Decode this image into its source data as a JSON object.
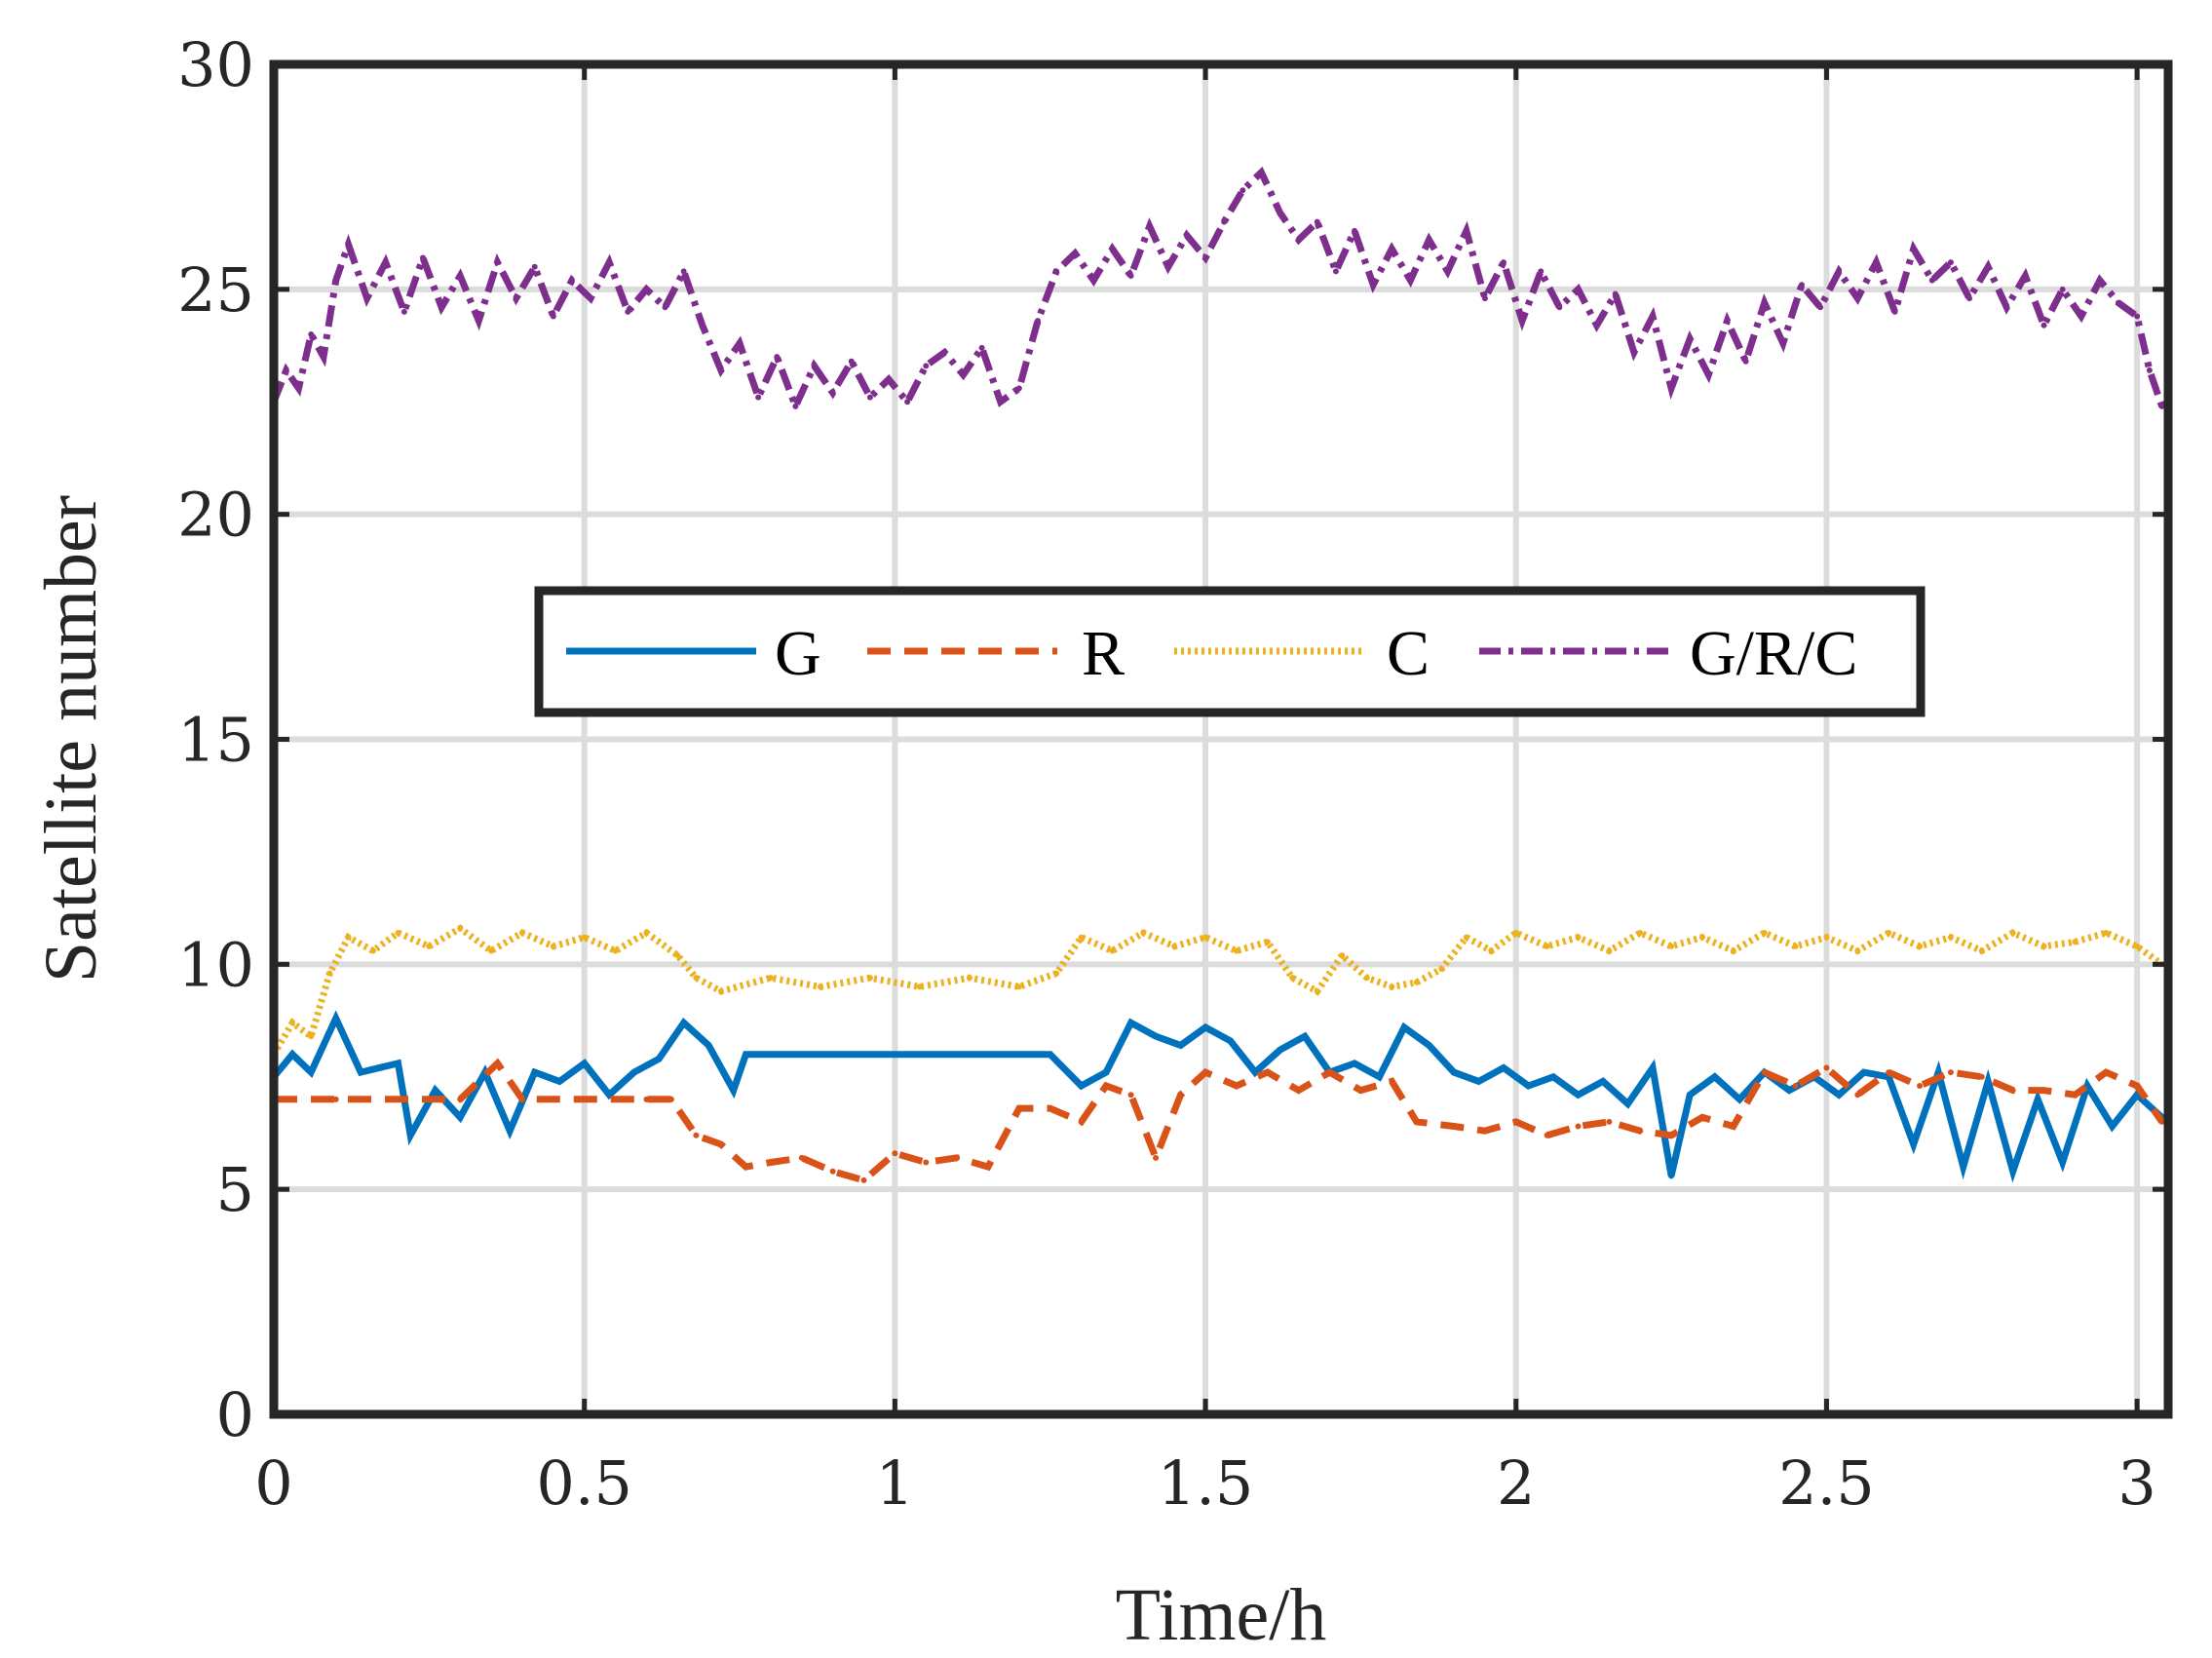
{
  "chart_data": {
    "type": "line",
    "title": "",
    "xlabel": "Time/h",
    "ylabel": "Satellite number",
    "xlim": [
      0,
      3.05
    ],
    "ylim": [
      0,
      30
    ],
    "xticks": [
      0,
      0.5,
      1,
      1.5,
      2,
      2.5,
      3
    ],
    "xtick_labels": [
      "0",
      "0.5",
      "1",
      "1.5",
      "2",
      "2.5",
      "3"
    ],
    "yticks": [
      0,
      5,
      10,
      15,
      20,
      25,
      30
    ],
    "ytick_labels": [
      "0",
      "5",
      "10",
      "15",
      "20",
      "25",
      "30"
    ],
    "grid": true,
    "legend_position": "center",
    "series": [
      {
        "name": "G",
        "color": "#0072BD",
        "dash": "solid",
        "points": [
          [
            0,
            7.5
          ],
          [
            0.03,
            8
          ],
          [
            0.06,
            7.6
          ],
          [
            0.1,
            8.8
          ],
          [
            0.14,
            7.6
          ],
          [
            0.2,
            7.8
          ],
          [
            0.22,
            6.2
          ],
          [
            0.26,
            7.2
          ],
          [
            0.3,
            6.6
          ],
          [
            0.34,
            7.6
          ],
          [
            0.38,
            6.3
          ],
          [
            0.42,
            7.6
          ],
          [
            0.46,
            7.4
          ],
          [
            0.5,
            7.8
          ],
          [
            0.54,
            7.1
          ],
          [
            0.58,
            7.6
          ],
          [
            0.62,
            7.9
          ],
          [
            0.66,
            8.7
          ],
          [
            0.7,
            8.2
          ],
          [
            0.74,
            7.2
          ],
          [
            0.76,
            8
          ],
          [
            0.85,
            8
          ],
          [
            0.95,
            8
          ],
          [
            1.05,
            8
          ],
          [
            1.15,
            8
          ],
          [
            1.25,
            8
          ],
          [
            1.3,
            7.3
          ],
          [
            1.34,
            7.6
          ],
          [
            1.38,
            8.7
          ],
          [
            1.42,
            8.4
          ],
          [
            1.46,
            8.2
          ],
          [
            1.5,
            8.6
          ],
          [
            1.54,
            8.3
          ],
          [
            1.58,
            7.6
          ],
          [
            1.62,
            8.1
          ],
          [
            1.66,
            8.4
          ],
          [
            1.7,
            7.6
          ],
          [
            1.74,
            7.8
          ],
          [
            1.78,
            7.5
          ],
          [
            1.82,
            8.6
          ],
          [
            1.86,
            8.2
          ],
          [
            1.9,
            7.6
          ],
          [
            1.94,
            7.4
          ],
          [
            1.98,
            7.7
          ],
          [
            2.02,
            7.3
          ],
          [
            2.06,
            7.5
          ],
          [
            2.1,
            7.1
          ],
          [
            2.14,
            7.4
          ],
          [
            2.18,
            6.9
          ],
          [
            2.22,
            7.7
          ],
          [
            2.25,
            5.3
          ],
          [
            2.28,
            7.1
          ],
          [
            2.32,
            7.5
          ],
          [
            2.36,
            7.0
          ],
          [
            2.4,
            7.6
          ],
          [
            2.44,
            7.2
          ],
          [
            2.48,
            7.5
          ],
          [
            2.52,
            7.1
          ],
          [
            2.56,
            7.6
          ],
          [
            2.6,
            7.5
          ],
          [
            2.64,
            6.0
          ],
          [
            2.68,
            7.6
          ],
          [
            2.72,
            5.5
          ],
          [
            2.76,
            7.4
          ],
          [
            2.8,
            5.4
          ],
          [
            2.84,
            7.0
          ],
          [
            2.88,
            5.6
          ],
          [
            2.92,
            7.3
          ],
          [
            2.96,
            6.4
          ],
          [
            3.0,
            7.1
          ],
          [
            3.04,
            6.6
          ]
        ]
      },
      {
        "name": "R",
        "color": "#D95319",
        "dash": "dashed",
        "points": [
          [
            0,
            7
          ],
          [
            0.1,
            7
          ],
          [
            0.2,
            7
          ],
          [
            0.3,
            7
          ],
          [
            0.36,
            7.8
          ],
          [
            0.4,
            7
          ],
          [
            0.5,
            7
          ],
          [
            0.6,
            7
          ],
          [
            0.64,
            7
          ],
          [
            0.68,
            6.2
          ],
          [
            0.72,
            6
          ],
          [
            0.76,
            5.5
          ],
          [
            0.8,
            5.6
          ],
          [
            0.85,
            5.7
          ],
          [
            0.9,
            5.4
          ],
          [
            0.95,
            5.2
          ],
          [
            1.0,
            5.8
          ],
          [
            1.05,
            5.6
          ],
          [
            1.1,
            5.7
          ],
          [
            1.15,
            5.5
          ],
          [
            1.2,
            6.8
          ],
          [
            1.25,
            6.8
          ],
          [
            1.3,
            6.5
          ],
          [
            1.34,
            7.3
          ],
          [
            1.38,
            7.1
          ],
          [
            1.42,
            5.7
          ],
          [
            1.46,
            7.1
          ],
          [
            1.5,
            7.6
          ],
          [
            1.55,
            7.3
          ],
          [
            1.6,
            7.6
          ],
          [
            1.65,
            7.2
          ],
          [
            1.7,
            7.6
          ],
          [
            1.75,
            7.2
          ],
          [
            1.8,
            7.4
          ],
          [
            1.84,
            6.5
          ],
          [
            1.9,
            6.4
          ],
          [
            1.95,
            6.3
          ],
          [
            2.0,
            6.5
          ],
          [
            2.05,
            6.2
          ],
          [
            2.1,
            6.4
          ],
          [
            2.15,
            6.5
          ],
          [
            2.2,
            6.3
          ],
          [
            2.25,
            6.2
          ],
          [
            2.3,
            6.6
          ],
          [
            2.35,
            6.4
          ],
          [
            2.4,
            7.6
          ],
          [
            2.45,
            7.3
          ],
          [
            2.5,
            7.7
          ],
          [
            2.55,
            7.1
          ],
          [
            2.6,
            7.6
          ],
          [
            2.65,
            7.3
          ],
          [
            2.7,
            7.6
          ],
          [
            2.75,
            7.5
          ],
          [
            2.8,
            7.2
          ],
          [
            2.85,
            7.2
          ],
          [
            2.9,
            7.1
          ],
          [
            2.95,
            7.6
          ],
          [
            3.0,
            7.3
          ],
          [
            3.04,
            6.5
          ]
        ]
      },
      {
        "name": "C",
        "color": "#EDB120",
        "dash": "dotted",
        "points": [
          [
            0,
            8
          ],
          [
            0.03,
            8.7
          ],
          [
            0.06,
            8.4
          ],
          [
            0.09,
            9.8
          ],
          [
            0.12,
            10.6
          ],
          [
            0.16,
            10.3
          ],
          [
            0.2,
            10.7
          ],
          [
            0.25,
            10.4
          ],
          [
            0.3,
            10.8
          ],
          [
            0.35,
            10.3
          ],
          [
            0.4,
            10.7
          ],
          [
            0.45,
            10.4
          ],
          [
            0.5,
            10.6
          ],
          [
            0.55,
            10.3
          ],
          [
            0.6,
            10.7
          ],
          [
            0.65,
            10.2
          ],
          [
            0.68,
            9.7
          ],
          [
            0.72,
            9.4
          ],
          [
            0.8,
            9.7
          ],
          [
            0.88,
            9.5
          ],
          [
            0.96,
            9.7
          ],
          [
            1.04,
            9.5
          ],
          [
            1.12,
            9.7
          ],
          [
            1.2,
            9.5
          ],
          [
            1.26,
            9.8
          ],
          [
            1.3,
            10.6
          ],
          [
            1.35,
            10.3
          ],
          [
            1.4,
            10.7
          ],
          [
            1.45,
            10.4
          ],
          [
            1.5,
            10.6
          ],
          [
            1.55,
            10.3
          ],
          [
            1.6,
            10.5
          ],
          [
            1.64,
            9.7
          ],
          [
            1.68,
            9.4
          ],
          [
            1.72,
            10.2
          ],
          [
            1.76,
            9.7
          ],
          [
            1.8,
            9.5
          ],
          [
            1.84,
            9.6
          ],
          [
            1.88,
            9.9
          ],
          [
            1.92,
            10.6
          ],
          [
            1.96,
            10.3
          ],
          [
            2.0,
            10.7
          ],
          [
            2.05,
            10.4
          ],
          [
            2.1,
            10.6
          ],
          [
            2.15,
            10.3
          ],
          [
            2.2,
            10.7
          ],
          [
            2.25,
            10.4
          ],
          [
            2.3,
            10.6
          ],
          [
            2.35,
            10.3
          ],
          [
            2.4,
            10.7
          ],
          [
            2.45,
            10.4
          ],
          [
            2.5,
            10.6
          ],
          [
            2.55,
            10.3
          ],
          [
            2.6,
            10.7
          ],
          [
            2.65,
            10.4
          ],
          [
            2.7,
            10.6
          ],
          [
            2.75,
            10.3
          ],
          [
            2.8,
            10.7
          ],
          [
            2.85,
            10.4
          ],
          [
            2.9,
            10.5
          ],
          [
            2.95,
            10.7
          ],
          [
            3.0,
            10.4
          ],
          [
            3.04,
            10
          ]
        ]
      },
      {
        "name": "G/R/C",
        "color": "#7E2F8E",
        "dash": "dashdot",
        "points": [
          [
            0,
            22.5
          ],
          [
            0.02,
            23.2
          ],
          [
            0.04,
            22.8
          ],
          [
            0.06,
            24
          ],
          [
            0.08,
            23.5
          ],
          [
            0.1,
            25.2
          ],
          [
            0.12,
            26
          ],
          [
            0.15,
            24.8
          ],
          [
            0.18,
            25.6
          ],
          [
            0.21,
            24.5
          ],
          [
            0.24,
            25.7
          ],
          [
            0.27,
            24.6
          ],
          [
            0.3,
            25.3
          ],
          [
            0.33,
            24.3
          ],
          [
            0.36,
            25.6
          ],
          [
            0.39,
            24.8
          ],
          [
            0.42,
            25.5
          ],
          [
            0.45,
            24.4
          ],
          [
            0.48,
            25.2
          ],
          [
            0.51,
            24.8
          ],
          [
            0.54,
            25.6
          ],
          [
            0.57,
            24.5
          ],
          [
            0.6,
            25
          ],
          [
            0.63,
            24.6
          ],
          [
            0.66,
            25.4
          ],
          [
            0.69,
            24.2
          ],
          [
            0.72,
            23.2
          ],
          [
            0.75,
            23.8
          ],
          [
            0.78,
            22.6
          ],
          [
            0.81,
            23.5
          ],
          [
            0.84,
            22.4
          ],
          [
            0.87,
            23.3
          ],
          [
            0.9,
            22.7
          ],
          [
            0.93,
            23.4
          ],
          [
            0.96,
            22.6
          ],
          [
            0.99,
            23
          ],
          [
            1.02,
            22.5
          ],
          [
            1.05,
            23.3
          ],
          [
            1.08,
            23.6
          ],
          [
            1.11,
            23.1
          ],
          [
            1.14,
            23.7
          ],
          [
            1.17,
            22.5
          ],
          [
            1.2,
            22.8
          ],
          [
            1.23,
            24.3
          ],
          [
            1.26,
            25.4
          ],
          [
            1.29,
            25.8
          ],
          [
            1.32,
            25.2
          ],
          [
            1.35,
            25.9
          ],
          [
            1.38,
            25.3
          ],
          [
            1.41,
            26.4
          ],
          [
            1.44,
            25.5
          ],
          [
            1.47,
            26.2
          ],
          [
            1.5,
            25.7
          ],
          [
            1.53,
            26.5
          ],
          [
            1.56,
            27.2
          ],
          [
            1.59,
            27.6
          ],
          [
            1.62,
            26.7
          ],
          [
            1.65,
            26.1
          ],
          [
            1.68,
            26.5
          ],
          [
            1.71,
            25.4
          ],
          [
            1.74,
            26.3
          ],
          [
            1.77,
            25.1
          ],
          [
            1.8,
            25.9
          ],
          [
            1.83,
            25.2
          ],
          [
            1.86,
            26.1
          ],
          [
            1.89,
            25.4
          ],
          [
            1.92,
            26.3
          ],
          [
            1.95,
            24.8
          ],
          [
            1.98,
            25.6
          ],
          [
            2.01,
            24.3
          ],
          [
            2.04,
            25.4
          ],
          [
            2.07,
            24.6
          ],
          [
            2.1,
            25
          ],
          [
            2.13,
            24.2
          ],
          [
            2.16,
            24.9
          ],
          [
            2.19,
            23.6
          ],
          [
            2.22,
            24.4
          ],
          [
            2.25,
            22.8
          ],
          [
            2.28,
            23.9
          ],
          [
            2.31,
            23.1
          ],
          [
            2.34,
            24.3
          ],
          [
            2.37,
            23.4
          ],
          [
            2.4,
            24.7
          ],
          [
            2.43,
            23.8
          ],
          [
            2.46,
            25.1
          ],
          [
            2.49,
            24.6
          ],
          [
            2.52,
            25.4
          ],
          [
            2.55,
            24.8
          ],
          [
            2.58,
            25.6
          ],
          [
            2.61,
            24.5
          ],
          [
            2.64,
            25.9
          ],
          [
            2.67,
            25.2
          ],
          [
            2.7,
            25.6
          ],
          [
            2.73,
            24.8
          ],
          [
            2.76,
            25.5
          ],
          [
            2.79,
            24.6
          ],
          [
            2.82,
            25.3
          ],
          [
            2.85,
            24.2
          ],
          [
            2.88,
            25
          ],
          [
            2.91,
            24.4
          ],
          [
            2.94,
            25.2
          ],
          [
            2.97,
            24.7
          ],
          [
            3.0,
            24.4
          ],
          [
            3.02,
            23.2
          ],
          [
            3.04,
            22.4
          ]
        ]
      }
    ]
  }
}
